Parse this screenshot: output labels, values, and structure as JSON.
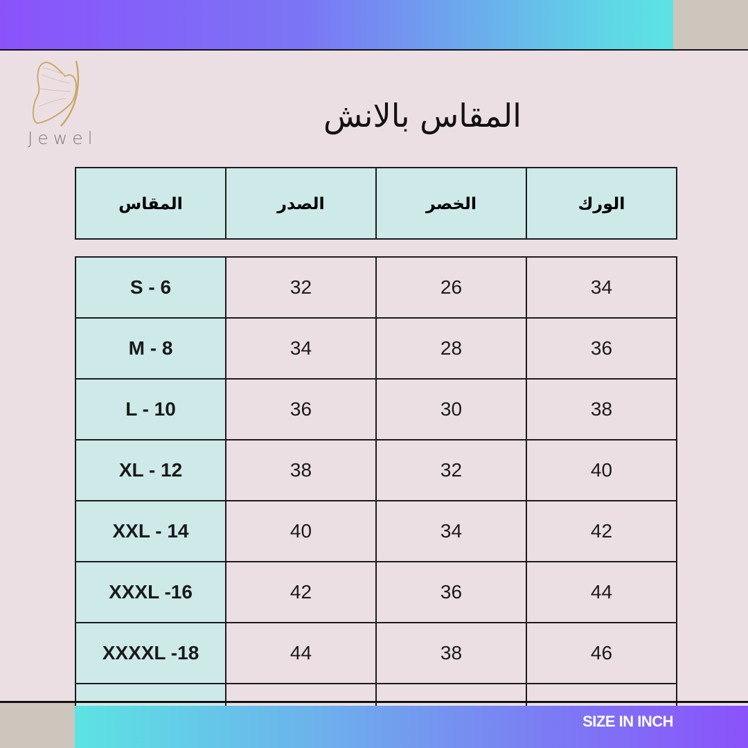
{
  "brand": {
    "logo_text": "Jewel",
    "logo_color": "#c9a96a"
  },
  "title": "المقاس بالانش",
  "table": {
    "headers": [
      "المقاس",
      "الصدر",
      "الخصر",
      "الورك"
    ],
    "rows": [
      [
        "S - 6",
        "32",
        "26",
        "34"
      ],
      [
        "M - 8",
        "34",
        "28",
        "36"
      ],
      [
        "L - 10",
        "36",
        "30",
        "38"
      ],
      [
        "XL - 12",
        "38",
        "32",
        "40"
      ],
      [
        "XXL - 14",
        "40",
        "34",
        "42"
      ],
      [
        "XXXL -16",
        "42",
        "36",
        "44"
      ],
      [
        "XXXXL -18",
        "44",
        "38",
        "46"
      ],
      [
        "",
        "",
        "",
        ""
      ]
    ]
  },
  "footer": {
    "label": "SIZE IN INCH"
  },
  "colors": {
    "purple": "#8b52fb",
    "cyan": "#5ce3e3",
    "cell_highlight": "#cdeae9",
    "background": "#ecdfe4"
  }
}
